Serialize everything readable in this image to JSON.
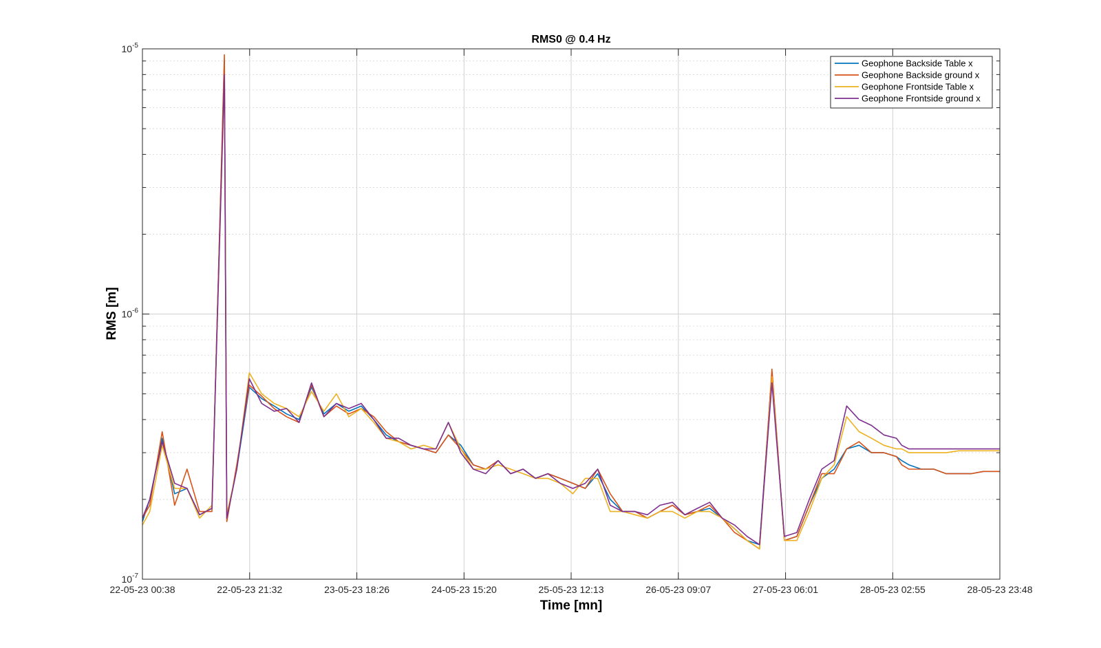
{
  "chart_data": {
    "type": "line",
    "title": "RMS0 @ 0.4 Hz",
    "xlabel": "Time [mn]",
    "ylabel": "RMS [m]",
    "y_scale": "log",
    "ylim": [
      1e-07,
      1e-05
    ],
    "y_ticks": [
      {
        "value": 1e-07,
        "base": "10",
        "exp": "-7"
      },
      {
        "value": 1e-06,
        "base": "10",
        "exp": "-6"
      },
      {
        "value": 1e-05,
        "base": "10",
        "exp": "-5"
      }
    ],
    "xlim": [
      "2023-05-22 00:38",
      "2023-05-28 23:48"
    ],
    "x_tick_labels": [
      "22-05-23 00:38",
      "22-05-23 21:32",
      "23-05-23 18:26",
      "24-05-23 15:20",
      "25-05-23 12:13",
      "26-05-23 09:07",
      "27-05-23 06:01",
      "28-05-23 02:55",
      "28-05-23 23:48"
    ],
    "x_tick_values": [
      "2023-05-22 00:38",
      "2023-05-22 21:32",
      "2023-05-23 18:26",
      "2023-05-24 15:20",
      "2023-05-25 12:13",
      "2023-05-26 09:07",
      "2023-05-27 06:01",
      "2023-05-28 02:55",
      "2023-05-28 23:48"
    ],
    "grid": true,
    "minor_grid": true,
    "legend_position": "top-right",
    "x": [
      "2023-05-22 00:38",
      "2023-05-22 02:03",
      "2023-05-22 04:29",
      "2023-05-22 06:55",
      "2023-05-22 09:20",
      "2023-05-22 11:46",
      "2023-05-22 14:11",
      "2023-05-22 16:37",
      "2023-05-22 17:05",
      "2023-05-22 19:02",
      "2023-05-22 21:28",
      "2023-05-22 23:53",
      "2023-05-23 02:19",
      "2023-05-23 04:44",
      "2023-05-23 07:10",
      "2023-05-23 09:36",
      "2023-05-23 12:01",
      "2023-05-23 14:27",
      "2023-05-23 16:52",
      "2023-05-23 19:18",
      "2023-05-23 21:44",
      "2023-05-24 00:09",
      "2023-05-24 02:35",
      "2023-05-24 05:00",
      "2023-05-24 07:26",
      "2023-05-24 09:51",
      "2023-05-24 12:17",
      "2023-05-24 14:43",
      "2023-05-24 17:08",
      "2023-05-24 19:34",
      "2023-05-24 21:59",
      "2023-05-25 00:25",
      "2023-05-25 02:51",
      "2023-05-25 05:16",
      "2023-05-25 07:42",
      "2023-05-25 10:07",
      "2023-05-25 12:33",
      "2023-05-25 14:58",
      "2023-05-25 17:24",
      "2023-05-25 19:50",
      "2023-05-25 22:15",
      "2023-05-26 00:41",
      "2023-05-26 03:06",
      "2023-05-26 05:32",
      "2023-05-26 07:58",
      "2023-05-26 10:23",
      "2023-05-26 12:49",
      "2023-05-26 15:14",
      "2023-05-26 17:40",
      "2023-05-26 20:05",
      "2023-05-26 22:31",
      "2023-05-27 00:57",
      "2023-05-27 03:22",
      "2023-05-27 05:48",
      "2023-05-27 08:13",
      "2023-05-27 10:39",
      "2023-05-27 13:05",
      "2023-05-27 15:30",
      "2023-05-27 17:56",
      "2023-05-27 20:21",
      "2023-05-27 22:47",
      "2023-05-28 01:12",
      "2023-05-28 03:38",
      "2023-05-28 04:40",
      "2023-05-28 06:04",
      "2023-05-28 08:29",
      "2023-05-28 10:55",
      "2023-05-28 13:20",
      "2023-05-28 15:46",
      "2023-05-28 18:12",
      "2023-05-28 20:37",
      "2023-05-28 23:03",
      "2023-05-28 23:48"
    ],
    "series": [
      {
        "name": "Geophone Backside Table x",
        "color": "#0072BD",
        "values": [
          1.65e-07,
          2e-07,
          3.4e-07,
          2.1e-07,
          2.2e-07,
          1.75e-07,
          1.85e-07,
          9e-06,
          1.7e-07,
          2.6e-07,
          5.3e-07,
          4.8e-07,
          4.5e-07,
          4.2e-07,
          4e-07,
          5.3e-07,
          4.2e-07,
          4.6e-07,
          4.3e-07,
          4.5e-07,
          4e-07,
          3.5e-07,
          3.3e-07,
          3.2e-07,
          3.1e-07,
          3e-07,
          3.5e-07,
          3.2e-07,
          2.7e-07,
          2.6e-07,
          2.8e-07,
          2.5e-07,
          2.6e-07,
          2.4e-07,
          2.5e-07,
          2.4e-07,
          2.3e-07,
          2.2e-07,
          2.5e-07,
          2e-07,
          1.8e-07,
          1.8e-07,
          1.7e-07,
          1.8e-07,
          1.9e-07,
          1.75e-07,
          1.8e-07,
          1.85e-07,
          1.7e-07,
          1.55e-07,
          1.4e-07,
          1.35e-07,
          6e-07,
          1.4e-07,
          1.45e-07,
          1.9e-07,
          2.4e-07,
          2.6e-07,
          3.1e-07,
          3.2e-07,
          3e-07,
          3e-07,
          2.9e-07,
          2.8e-07,
          2.7e-07,
          2.6e-07,
          2.6e-07,
          2.5e-07,
          2.5e-07,
          2.5e-07,
          2.55e-07,
          2.55e-07,
          2.55e-07
        ]
      },
      {
        "name": "Geophone Backside ground x",
        "color": "#D95319",
        "values": [
          1.7e-07,
          1.9e-07,
          3.6e-07,
          1.9e-07,
          2.6e-07,
          1.8e-07,
          1.8e-07,
          9.5e-06,
          1.65e-07,
          2.7e-07,
          5.4e-07,
          4.9e-07,
          4.4e-07,
          4.1e-07,
          3.9e-07,
          5.4e-07,
          4.1e-07,
          4.5e-07,
          4.2e-07,
          4.4e-07,
          4.1e-07,
          3.6e-07,
          3.3e-07,
          3.2e-07,
          3.1e-07,
          3e-07,
          3.5e-07,
          3.1e-07,
          2.7e-07,
          2.6e-07,
          2.8e-07,
          2.5e-07,
          2.6e-07,
          2.4e-07,
          2.5e-07,
          2.4e-07,
          2.3e-07,
          2.2e-07,
          2.6e-07,
          2.1e-07,
          1.8e-07,
          1.8e-07,
          1.7e-07,
          1.8e-07,
          1.9e-07,
          1.75e-07,
          1.8e-07,
          1.9e-07,
          1.7e-07,
          1.5e-07,
          1.4e-07,
          1.3e-07,
          6.2e-07,
          1.4e-07,
          1.45e-07,
          1.9e-07,
          2.5e-07,
          2.5e-07,
          3.1e-07,
          3.3e-07,
          3e-07,
          3e-07,
          2.9e-07,
          2.7e-07,
          2.6e-07,
          2.6e-07,
          2.6e-07,
          2.5e-07,
          2.5e-07,
          2.5e-07,
          2.55e-07,
          2.55e-07,
          2.55e-07
        ]
      },
      {
        "name": "Geophone Frontside Table x",
        "color": "#EDB120",
        "values": [
          1.6e-07,
          1.8e-07,
          3.2e-07,
          2.2e-07,
          2.2e-07,
          1.7e-07,
          1.9e-07,
          8e-06,
          1.75e-07,
          2.6e-07,
          6e-07,
          5e-07,
          4.6e-07,
          4.4e-07,
          4.1e-07,
          5.1e-07,
          4.3e-07,
          5e-07,
          4.1e-07,
          4.4e-07,
          3.9e-07,
          3.4e-07,
          3.3e-07,
          3.1e-07,
          3.2e-07,
          3.1e-07,
          3.9e-07,
          3.1e-07,
          2.6e-07,
          2.6e-07,
          2.7e-07,
          2.6e-07,
          2.5e-07,
          2.4e-07,
          2.4e-07,
          2.3e-07,
          2.1e-07,
          2.4e-07,
          2.4e-07,
          1.8e-07,
          1.8e-07,
          1.75e-07,
          1.7e-07,
          1.8e-07,
          1.8e-07,
          1.7e-07,
          1.8e-07,
          1.8e-07,
          1.7e-07,
          1.55e-07,
          1.4e-07,
          1.3e-07,
          5.8e-07,
          1.4e-07,
          1.4e-07,
          1.8e-07,
          2.4e-07,
          2.7e-07,
          4.1e-07,
          3.6e-07,
          3.4e-07,
          3.2e-07,
          3.1e-07,
          3.1e-07,
          3e-07,
          3e-07,
          3e-07,
          3e-07,
          3.05e-07,
          3.05e-07,
          3.05e-07,
          3.05e-07,
          3.05e-07
        ]
      },
      {
        "name": "Geophone Frontside ground x",
        "color": "#7E2F8E",
        "values": [
          1.7e-07,
          2e-07,
          3.3e-07,
          2.3e-07,
          2.2e-07,
          1.75e-07,
          1.85e-07,
          8e-06,
          1.7e-07,
          2.6e-07,
          5.7e-07,
          4.6e-07,
          4.3e-07,
          4.4e-07,
          3.9e-07,
          5.5e-07,
          4.1e-07,
          4.6e-07,
          4.4e-07,
          4.6e-07,
          4e-07,
          3.4e-07,
          3.4e-07,
          3.2e-07,
          3.1e-07,
          3.1e-07,
          3.9e-07,
          3e-07,
          2.6e-07,
          2.5e-07,
          2.8e-07,
          2.5e-07,
          2.6e-07,
          2.4e-07,
          2.5e-07,
          2.3e-07,
          2.2e-07,
          2.3e-07,
          2.6e-07,
          1.9e-07,
          1.8e-07,
          1.8e-07,
          1.75e-07,
          1.9e-07,
          1.95e-07,
          1.75e-07,
          1.85e-07,
          1.95e-07,
          1.7e-07,
          1.6e-07,
          1.45e-07,
          1.35e-07,
          5.5e-07,
          1.45e-07,
          1.5e-07,
          2e-07,
          2.6e-07,
          2.8e-07,
          4.5e-07,
          4e-07,
          3.8e-07,
          3.5e-07,
          3.4e-07,
          3.2e-07,
          3.1e-07,
          3.1e-07,
          3.1e-07,
          3.1e-07,
          3.1e-07,
          3.1e-07,
          3.1e-07,
          3.1e-07,
          3.1e-07
        ]
      }
    ]
  }
}
